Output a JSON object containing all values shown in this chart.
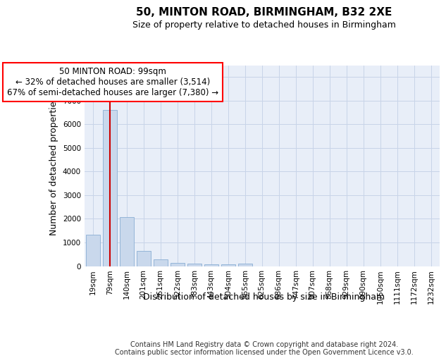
{
  "title1": "50, MINTON ROAD, BIRMINGHAM, B32 2XE",
  "title2": "Size of property relative to detached houses in Birmingham",
  "xlabel": "Distribution of detached houses by size in Birmingham",
  "ylabel": "Number of detached properties",
  "categories": [
    "19sqm",
    "79sqm",
    "140sqm",
    "201sqm",
    "261sqm",
    "322sqm",
    "383sqm",
    "443sqm",
    "504sqm",
    "565sqm",
    "625sqm",
    "686sqm",
    "747sqm",
    "807sqm",
    "868sqm",
    "929sqm",
    "990sqm",
    "1050sqm",
    "1111sqm",
    "1172sqm",
    "1232sqm"
  ],
  "values": [
    1320,
    6600,
    2080,
    650,
    295,
    135,
    95,
    75,
    75,
    110,
    0,
    0,
    0,
    0,
    0,
    0,
    0,
    0,
    0,
    0,
    0
  ],
  "bar_fill": "#c9d8ec",
  "bar_edge": "#8aaed4",
  "line_color": "#cc0000",
  "highlight_bar_index": 1,
  "ylim": [
    0,
    8500
  ],
  "yticks": [
    0,
    1000,
    2000,
    3000,
    4000,
    5000,
    6000,
    7000,
    8000
  ],
  "annotation_line1": "50 MINTON ROAD: 99sqm",
  "annotation_line2": "← 32% of detached houses are smaller (3,514)",
  "annotation_line3": "67% of semi-detached houses are larger (7,380) →",
  "footer1": "Contains HM Land Registry data © Crown copyright and database right 2024.",
  "footer2": "Contains public sector information licensed under the Open Government Licence v3.0.",
  "grid_color": "#c8d4e8",
  "bg_color": "#e8eef8",
  "title1_fontsize": 11,
  "title2_fontsize": 9,
  "ylabel_fontsize": 9,
  "xlabel_fontsize": 9,
  "tick_fontsize": 7.5,
  "footer_fontsize": 7,
  "annot_fontsize": 8.5
}
